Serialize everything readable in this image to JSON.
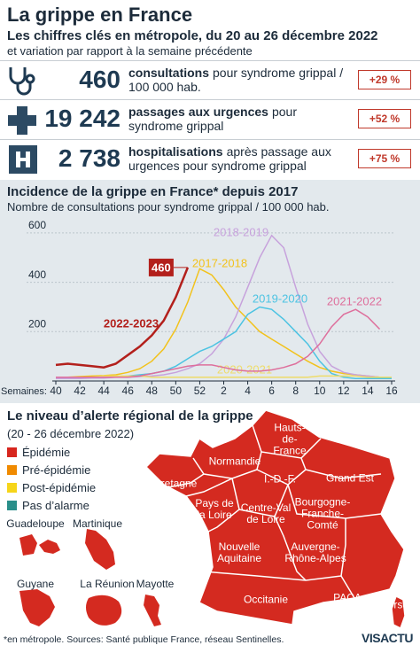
{
  "header": {
    "title": "La grippe en France",
    "subtitle": "Les chiffres clés en métropole, du 20 au 26 décembre 2022",
    "subtitle2": "et variation par rapport à la semaine précédente"
  },
  "key_figures": [
    {
      "value": "460",
      "label_bold": "consultations",
      "label": "pour syndrome grippal / 100 000 hab.",
      "variation": "+29 %"
    },
    {
      "value": "19 242",
      "label_bold": "passages aux urgences",
      "label": "pour syndrome grippal",
      "variation": "+52 %"
    },
    {
      "value": "2 738",
      "label_bold": "hospitalisations",
      "label": "après passage aux urgences pour syndrome grippal",
      "variation": "+75 %"
    }
  ],
  "chart_data": {
    "type": "line",
    "title": "Incidence de la grippe en France* depuis 2017",
    "subtitle": "Nombre de consultations pour syndrome grippal / 100 000 hab.",
    "x_label": "Semaines:",
    "categories": [
      "40",
      null,
      "42",
      null,
      "44",
      null,
      "46",
      null,
      "48",
      null,
      "50",
      null,
      "52",
      null,
      "2",
      null,
      "4",
      null,
      "6",
      null,
      "8",
      null,
      "10",
      null,
      "12",
      null,
      "14",
      null,
      "16"
    ],
    "ylim": [
      0,
      650
    ],
    "yticks": [
      200,
      400,
      600
    ],
    "grid": true,
    "annotation": "460",
    "series": [
      {
        "name": "2017-2018",
        "color": "#f2c21b",
        "values": [
          15,
          15,
          18,
          20,
          22,
          25,
          35,
          50,
          80,
          130,
          210,
          320,
          455,
          430,
          370,
          300,
          250,
          200,
          170,
          140,
          110,
          80,
          55,
          40,
          30,
          25,
          20,
          15,
          15
        ]
      },
      {
        "name": "2018-2019",
        "color": "#c7a2dc",
        "values": [
          10,
          10,
          10,
          12,
          12,
          15,
          15,
          18,
          20,
          25,
          35,
          50,
          70,
          110,
          170,
          260,
          380,
          500,
          590,
          540,
          380,
          230,
          120,
          60,
          35,
          25,
          20,
          15,
          15
        ]
      },
      {
        "name": "2019-2020",
        "color": "#4cc3e2",
        "values": [
          15,
          15,
          15,
          15,
          15,
          15,
          20,
          25,
          30,
          40,
          60,
          90,
          120,
          140,
          170,
          200,
          270,
          300,
          290,
          250,
          200,
          150,
          80,
          30,
          15,
          10,
          10,
          10,
          10
        ]
      },
      {
        "name": "2020-2021",
        "color": "#eedc6a",
        "values": [
          15,
          15,
          15,
          15,
          20,
          20,
          20,
          20,
          15,
          15,
          15,
          15,
          15,
          15,
          15,
          15,
          15,
          15,
          15,
          15,
          15,
          15,
          20,
          20,
          20,
          20,
          15,
          15,
          15
        ]
      },
      {
        "name": "2021-2022",
        "color": "#de6f9c",
        "values": [
          15,
          15,
          15,
          15,
          15,
          15,
          15,
          20,
          30,
          40,
          50,
          60,
          65,
          65,
          55,
          45,
          40,
          40,
          45,
          55,
          70,
          100,
          150,
          220,
          270,
          290,
          260,
          210,
          null
        ]
      },
      {
        "name": "2022-2023",
        "color": "#b3201c",
        "values": [
          65,
          70,
          65,
          60,
          55,
          70,
          105,
          140,
          185,
          245,
          340,
          460,
          null,
          null,
          null,
          null,
          null,
          null,
          null,
          null,
          null,
          null,
          null,
          null,
          null,
          null,
          null,
          null,
          null
        ]
      }
    ]
  },
  "map": {
    "title": "Le niveau d’alerte régional de la grippe",
    "period": "(20 - 26 décembre 2022)",
    "legend": [
      {
        "label": "Épidémie",
        "color": "#d7261e"
      },
      {
        "label": "Pré-épidémie",
        "color": "#f08a00"
      },
      {
        "label": "Post-épidémie",
        "color": "#f6d51a"
      },
      {
        "label": "Pas d’alarme",
        "color": "#2a8f8a"
      }
    ],
    "regions": [
      "Hauts-de-France",
      "Normandie",
      "I.-D.-F.",
      "Grand Est",
      "Bretagne",
      "Pays de la Loire",
      "Centre-Val de Loire",
      "Bourgogne-Franche-Comté",
      "Nouvelle Aquitaine",
      "Auvergne-Rhône-Alpes",
      "Occitanie",
      "PACA",
      "Corse"
    ],
    "overseas": [
      "Guadeloupe",
      "Martinique",
      "Guyane",
      "La Réunion",
      "Mayotte"
    ]
  },
  "footer": {
    "note": "*en métropole. Sources: Santé publique France, réseau Sentinelles.",
    "logo": "VISACTU"
  }
}
